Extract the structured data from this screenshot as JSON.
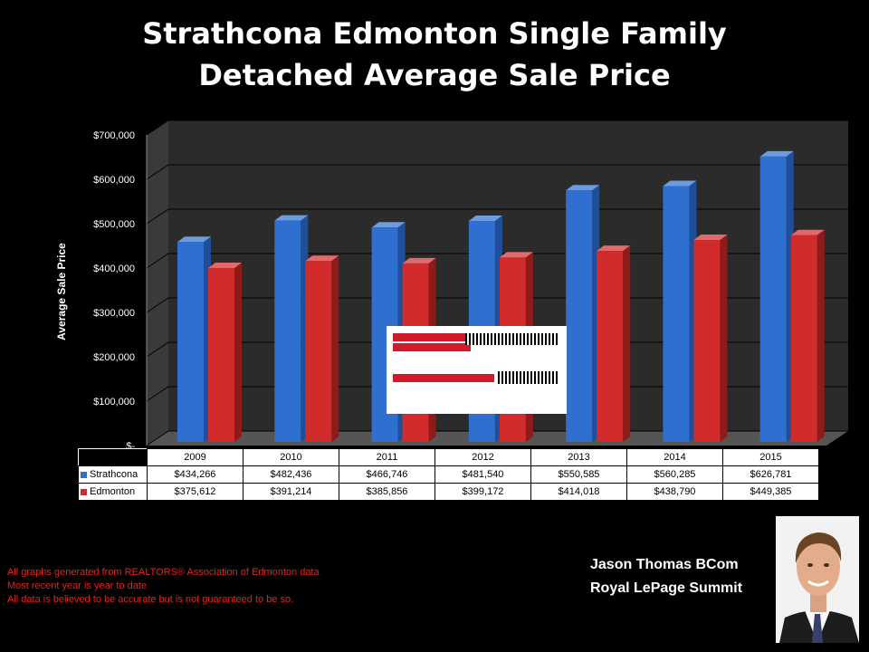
{
  "title_lines": [
    "Strathcona Edmonton Single Family",
    "Detached Average Sale Price"
  ],
  "colors": {
    "strathcona": "#2f6fd0",
    "edmonton": "#d12b2b",
    "plot_wall": "#2b2b2b"
  },
  "chart_data": {
    "type": "bar",
    "title": "Strathcona Edmonton Single Family Detached Average Sale Price",
    "xlabel": "",
    "ylabel": "Average Sale Price",
    "categories": [
      "2009",
      "2010",
      "2011",
      "2012",
      "2013",
      "2014",
      "2015"
    ],
    "series": [
      {
        "name": "Strathcona",
        "values": [
          434266,
          482436,
          466746,
          481540,
          550585,
          560285,
          626781
        ]
      },
      {
        "name": "Edmonton",
        "values": [
          375612,
          391214,
          385856,
          399172,
          414018,
          438790,
          449385
        ]
      }
    ],
    "ylim": [
      0,
      700000
    ],
    "y_ticks": [
      0,
      100000,
      200000,
      300000,
      400000,
      500000,
      600000,
      700000
    ],
    "y_tick_labels": [
      "$-",
      "$100,000",
      "$200,000",
      "$300,000",
      "$400,000",
      "$500,000",
      "$600,000",
      "$700,000"
    ],
    "grid": true,
    "legend": "data-table",
    "data_table": {
      "rows": [
        {
          "label": "Strathcona",
          "values": [
            "$434,266",
            "$482,436",
            "$466,746",
            "$481,540",
            "$550,585",
            "$560,285",
            "$626,781"
          ]
        },
        {
          "label": "Edmonton",
          "values": [
            "$375,612",
            "$391,214",
            "$385,856",
            "$399,172",
            "$414,018",
            "$438,790",
            "$449,385"
          ]
        }
      ]
    }
  },
  "logo": {
    "name": "ROYAL LePAGE",
    "url": "www.JasonThomas.ca"
  },
  "notes": [
    "All graphs generated from REALTORS® Association of Edmonton data",
    "Most recent year is year to date",
    "All data is believed to be accurate but is not guaranteed to be so."
  ],
  "author": {
    "name": "Jason Thomas BCom",
    "company": "Royal LePage Summit"
  }
}
